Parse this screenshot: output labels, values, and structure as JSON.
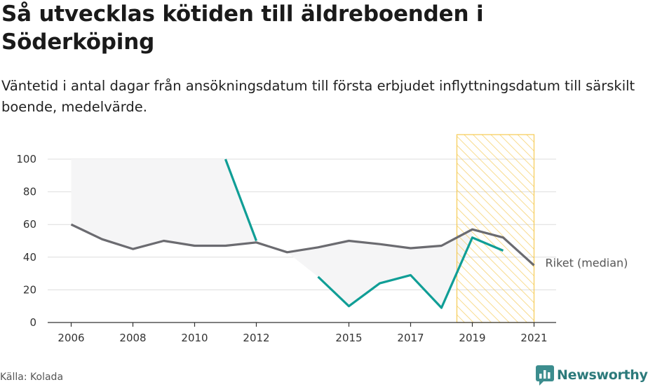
{
  "title": "Så utvecklas kötiden till äldreboenden i Söderköping",
  "subtitle": "Väntetid i antal dagar från ansökningsdatum till första erbjudet inflyttningsdatum till särskilt boende, medelvärde.",
  "source": "Källa: Kolada",
  "brand": "Newsworthy",
  "colors": {
    "local": "#109e96",
    "national": "#6b6b70",
    "gap_fill": "#f5f5f6",
    "highlight": "#f5c542"
  },
  "chart_data": {
    "type": "line",
    "x_ticks": [
      "2006",
      "2008",
      "2010",
      "2012",
      "2015",
      "2017",
      "2019",
      "2021"
    ],
    "y_ticks": [
      "0",
      "20",
      "40",
      "60",
      "80",
      "100"
    ],
    "ylim": [
      0,
      100
    ],
    "xlim": [
      2005.3,
      2021.7
    ],
    "grid": true,
    "highlight_range": [
      2018.5,
      2021
    ],
    "series": [
      {
        "name": "",
        "color": "#109e96",
        "x": [
          2011,
          2012,
          2013,
          2014,
          2015,
          2016,
          2017,
          2018,
          2019,
          2020
        ],
        "values": [
          100,
          50,
          null,
          28,
          10,
          24,
          29,
          9,
          52,
          44
        ]
      },
      {
        "name": "Riket (median)",
        "color": "#6b6b70",
        "x": [
          2006,
          2007,
          2008,
          2009,
          2010,
          2011,
          2012,
          2013,
          2014,
          2015,
          2016,
          2017,
          2018,
          2019,
          2020,
          2021
        ],
        "values": [
          60,
          51,
          45,
          50,
          47,
          47,
          49,
          43,
          46,
          50,
          48,
          45.5,
          47,
          57,
          52,
          35
        ]
      }
    ]
  }
}
